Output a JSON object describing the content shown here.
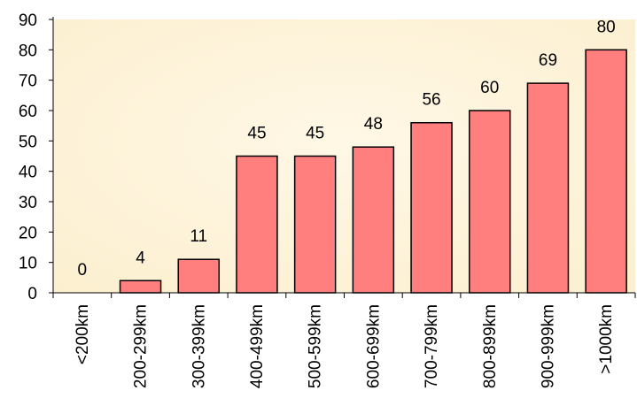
{
  "chart_data": {
    "type": "bar",
    "categories": [
      "<200km",
      "200-299km",
      "300-399km",
      "400-499km",
      "500-599km",
      "600-699km",
      "700-799km",
      "800-899km",
      "900-999km",
      ">1000km"
    ],
    "values": [
      0,
      4,
      11,
      45,
      45,
      48,
      56,
      60,
      69,
      80
    ],
    "data_labels": [
      "0",
      "4",
      "11",
      "45",
      "45",
      "48",
      "56",
      "60",
      "69",
      "80"
    ],
    "y_ticks": [
      "0",
      "10",
      "20",
      "30",
      "40",
      "50",
      "60",
      "70",
      "80",
      "90"
    ],
    "ylim": [
      0,
      90
    ],
    "title": "",
    "xlabel": "",
    "ylabel": "",
    "grid": false,
    "legend": "none",
    "colors": {
      "bar_fill": "#ff7f7f",
      "bar_stroke": "#000000",
      "plot_background": "#fcefcf",
      "plot_background_light": "#fff8e6"
    }
  }
}
